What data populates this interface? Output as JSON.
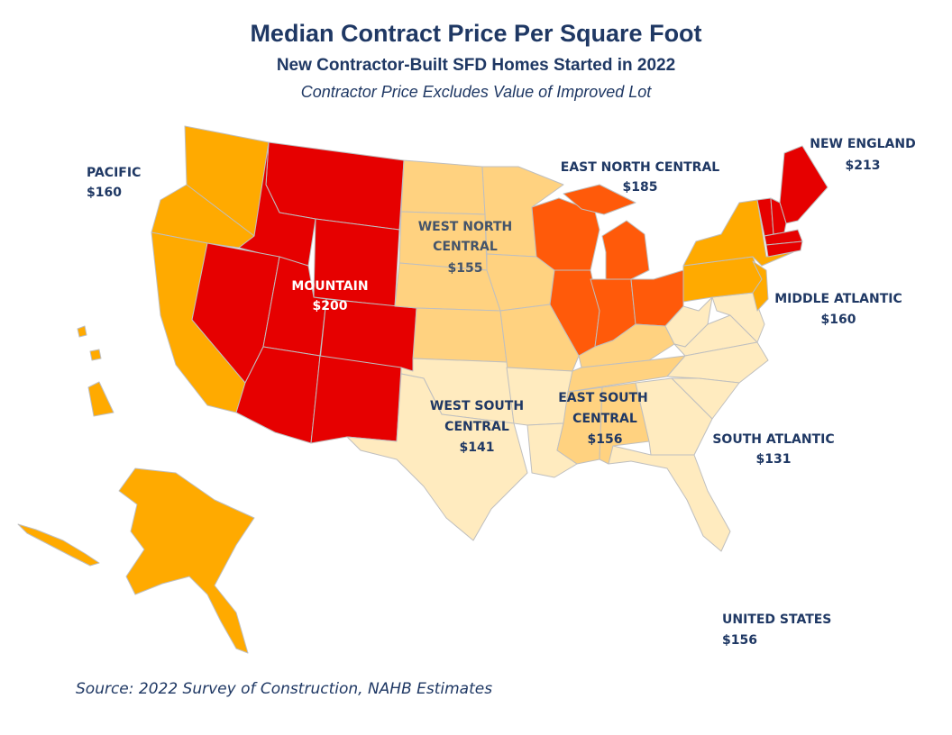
{
  "title": "Median Contract Price Per Square Foot",
  "subtitle": "New Contractor-Built SFD Homes Started in 2022",
  "subtitle2": "Contractor Price Excludes Value of Improved Lot",
  "source": "Source: 2022 Survey of Construction, NAHB Estimates",
  "colors": {
    "mountain": "#e60000",
    "new_england": "#e60000",
    "east_north_central": "#ff5a0a",
    "pacific": "#ffaa00",
    "middle_atlantic": "#ffaa00",
    "west_north_central": "#ffd280",
    "east_south_central": "#ffd280",
    "west_south_central": "#ffebbf",
    "south_atlantic": "#ffebbf",
    "border": "#bfbfbf",
    "text": "#1f3864"
  },
  "regions": {
    "pacific": {
      "name": "PACIFIC",
      "value": "$160"
    },
    "mountain": {
      "name": "MOUNTAIN",
      "value": "$200"
    },
    "west_north_central": {
      "name1": "WEST NORTH",
      "name2": "CENTRAL",
      "value": "$155"
    },
    "east_north_central": {
      "name": "EAST NORTH CENTRAL",
      "value": "$185"
    },
    "new_england": {
      "name": "NEW ENGLAND",
      "value": "$213"
    },
    "middle_atlantic": {
      "name": "MIDDLE ATLANTIC",
      "value": "$160"
    },
    "south_atlantic": {
      "name": "SOUTH ATLANTIC",
      "value": "$131"
    },
    "east_south_central": {
      "name1": "EAST SOUTH",
      "name2": "CENTRAL",
      "value": "$156"
    },
    "west_south_central": {
      "name1": "WEST SOUTH",
      "name2": "CENTRAL",
      "value": "$141"
    },
    "united_states": {
      "name": "UNITED STATES",
      "value": "$156"
    }
  }
}
